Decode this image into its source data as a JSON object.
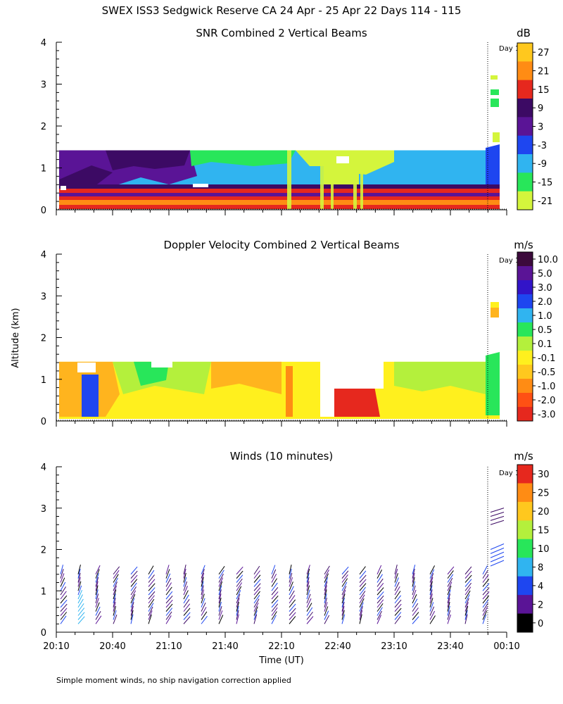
{
  "figure": {
    "title": "SWEX ISS3 Sedgwick Reserve CA  24 Apr - 25 Apr 22 Days 114 - 115",
    "ylabel": "Altitude (km)",
    "xlabel": "Time (UT)",
    "footnote": "Simple moment winds, no ship navigation correction applied",
    "day_marker": "Day 1",
    "x_ticks": [
      "20:10",
      "20:40",
      "21:10",
      "21:40",
      "22:10",
      "22:40",
      "23:10",
      "23:40",
      "00:10"
    ],
    "y_ticks": [
      "0",
      "1",
      "2",
      "3",
      "4"
    ]
  },
  "colors": {
    "c_yellowgreen": "#d4f53c",
    "c_green": "#28e65a",
    "c_lightblue": "#30b4f0",
    "c_blue": "#1e46f0",
    "c_darkpurple": "#5a1496",
    "c_purple": "#3c0a64",
    "c_red": "#e6281e",
    "c_orange": "#ff8c14",
    "c_yellow": "#fff01e",
    "c_amber": "#ffb41e"
  },
  "chart_data": [
    {
      "type": "heatmap",
      "title": "SNR Combined 2 Vertical Beams",
      "unit": "dB",
      "xlabel": "Time (UT)",
      "ylabel": "Altitude (km)",
      "xlim": [
        "20:10",
        "00:10"
      ],
      "ylim": [
        0,
        4
      ],
      "colorbar_ticks": [
        "27",
        "21",
        "15",
        "9",
        "3",
        "-3",
        "-9",
        "-15",
        "-21"
      ],
      "colorbar_colors": [
        "#ffc81e",
        "#ff8c14",
        "#e6281e",
        "#3c0a64",
        "#5a1496",
        "#1e46f0",
        "#30b4f0",
        "#28e65a",
        "#d4f53c"
      ]
    },
    {
      "type": "heatmap",
      "title": "Doppler Velocity Combined 2 Vertical Beams",
      "unit": "m/s",
      "xlabel": "Time (UT)",
      "ylabel": "Altitude (km)",
      "xlim": [
        "20:10",
        "00:10"
      ],
      "ylim": [
        0,
        4
      ],
      "colorbar_ticks": [
        "10.0",
        "5.0",
        "3.0",
        "2.0",
        "1.0",
        "0.5",
        "0.1",
        "-0.1",
        "-0.5",
        "-1.0",
        "-2.0",
        "-3.0"
      ],
      "colorbar_colors": [
        "#3c0a3c",
        "#5a1496",
        "#3214c8",
        "#1e46f0",
        "#30b4f0",
        "#28e65a",
        "#b4f03c",
        "#fff01e",
        "#ffc81e",
        "#ff8c14",
        "#ff5014",
        "#e6281e"
      ]
    },
    {
      "type": "scatter",
      "title": "Winds (10 minutes)",
      "unit": "m/s",
      "xlabel": "Time (UT)",
      "ylabel": "Altitude (km)",
      "xlim": [
        "20:10",
        "00:10"
      ],
      "ylim": [
        0,
        4
      ],
      "colorbar_ticks": [
        "30",
        "25",
        "20",
        "15",
        "10",
        "8",
        "4",
        "2",
        "0"
      ],
      "colorbar_colors": [
        "#e6281e",
        "#ff8c14",
        "#ffc81e",
        "#b4f03c",
        "#28e65a",
        "#30b4f0",
        "#1e46f0",
        "#5a1496",
        "#000000"
      ]
    }
  ]
}
